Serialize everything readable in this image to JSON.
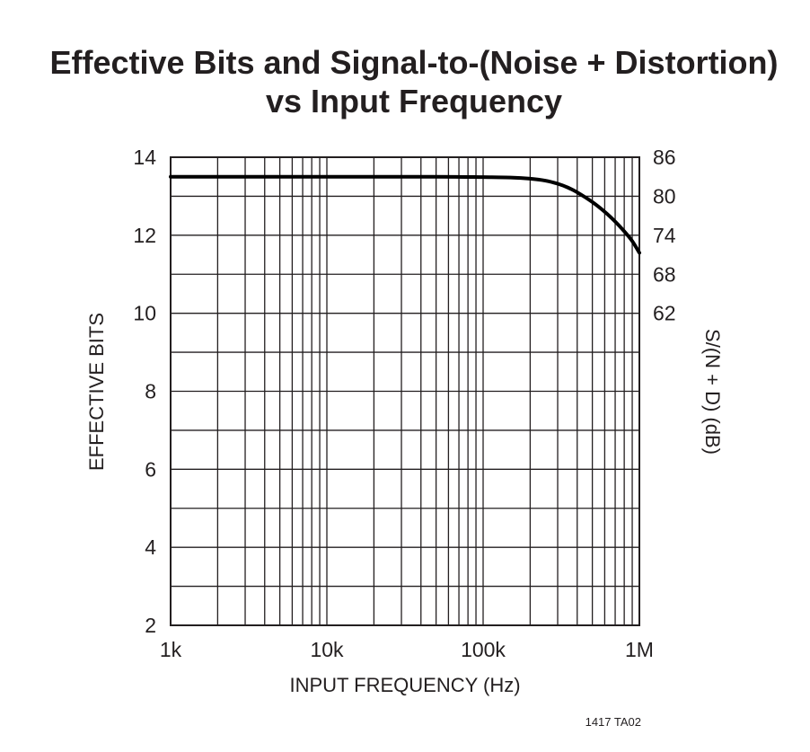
{
  "chart_data": {
    "type": "line",
    "title_lines": [
      "Effective Bits and Signal-to-(Noise + Distortion)",
      "vs Input Frequency"
    ],
    "xlabel": "INPUT FREQUENCY (Hz)",
    "ylabel": "EFFECTIVE BITS",
    "y2label": "S/(N + D) (dB)",
    "x_scale": "log",
    "xlim": [
      1000,
      1000000
    ],
    "ylim": [
      2,
      14
    ],
    "grid": true,
    "x_ticks": [
      {
        "value": 1000,
        "label": "1k"
      },
      {
        "value": 10000,
        "label": "10k"
      },
      {
        "value": 100000,
        "label": "100k"
      },
      {
        "value": 1000000,
        "label": "1M"
      }
    ],
    "y_ticks": [
      {
        "value": 2,
        "label": "2"
      },
      {
        "value": 4,
        "label": "4"
      },
      {
        "value": 6,
        "label": "6"
      },
      {
        "value": 8,
        "label": "8"
      },
      {
        "value": 10,
        "label": "10"
      },
      {
        "value": 12,
        "label": "12"
      },
      {
        "value": 14,
        "label": "14"
      }
    ],
    "y_minor_ticks": [
      3,
      5,
      7,
      9,
      11,
      13
    ],
    "y2_ticks": [
      {
        "bits": 14,
        "label": "86"
      },
      {
        "bits": 13,
        "label": "80"
      },
      {
        "bits": 12,
        "label": "74"
      },
      {
        "bits": 11,
        "label": "68"
      },
      {
        "bits": 10,
        "label": "62"
      }
    ],
    "series": [
      {
        "x": [
          1000,
          10000,
          50000,
          100000,
          150000,
          200000,
          250000,
          300000,
          350000,
          400000,
          500000,
          600000,
          700000,
          800000,
          900000,
          1000000
        ],
        "values": [
          13.5,
          13.5,
          13.5,
          13.49,
          13.48,
          13.45,
          13.4,
          13.32,
          13.22,
          13.1,
          12.85,
          12.6,
          12.35,
          12.1,
          11.85,
          11.55
        ]
      }
    ],
    "footnote": "1417 TA02"
  }
}
